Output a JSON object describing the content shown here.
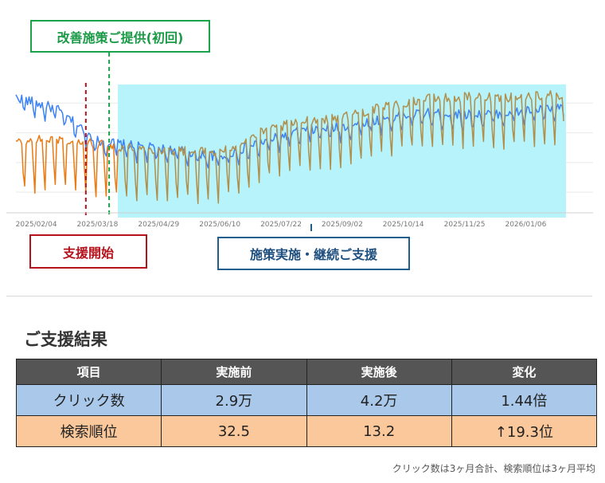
{
  "annotations": {
    "improve_label": "改善施策ご提供(初回)",
    "start_label": "支援開始",
    "impl_label": "施策実施・継続ご支援",
    "improve_color": "#1aa34a",
    "start_color": "#b5121b",
    "impl_color": "#1f5f8f",
    "highlight_color": "#b6f3fa"
  },
  "chart_data": {
    "type": "line",
    "title": "",
    "xlabel": "",
    "ylabel": "",
    "x_tick_labels": [
      "2025/02/04",
      "2025/03/18",
      "2025/04/29",
      "2025/06/10",
      "2025/07/22",
      "2025/09/02",
      "2025/10/14",
      "2025/11/25",
      "2026/01/06"
    ],
    "x_range": [
      "2025/01/21",
      "2026/02/01"
    ],
    "y_axis_labels_visible": false,
    "gridlines": "horizontal",
    "events": [
      {
        "date": "2025/03/10",
        "label": "支援開始",
        "style": "dashed",
        "color": "#b5121b"
      },
      {
        "date": "2025/03/26",
        "label": "改善施策ご提供(初回)",
        "style": "dashed",
        "color": "#1aa34a"
      }
    ],
    "highlight_range": {
      "start": "2025/04/01",
      "end": "2026/02/01",
      "label": "施策実施・継続ご支援"
    },
    "series": [
      {
        "color": "#3b82f6",
        "x": [
          "2025/01/21",
          "2025/02/18",
          "2025/03/18",
          "2025/04/15",
          "2025/05/13",
          "2025/06/10",
          "2025/07/08",
          "2025/08/05",
          "2025/09/02",
          "2025/09/30",
          "2025/10/28",
          "2025/11/25",
          "2025/12/23",
          "2026/01/20"
        ],
        "y": [
          58,
          52,
          36,
          33,
          31,
          28,
          35,
          41,
          43,
          47,
          50,
          49,
          50,
          52
        ],
        "weekly_dip": 6
      },
      {
        "color": "#ea7a14",
        "color_after_highlight": "#b08e4b",
        "x": [
          "2025/01/21",
          "2025/02/18",
          "2025/03/18",
          "2025/04/15",
          "2025/05/13",
          "2025/06/10",
          "2025/07/08",
          "2025/08/05",
          "2025/09/02",
          "2025/09/30",
          "2025/10/28",
          "2025/11/25",
          "2025/12/23",
          "2026/01/20"
        ],
        "y": [
          35,
          37,
          34,
          32,
          31,
          30,
          40,
          46,
          48,
          53,
          57,
          58,
          58,
          59
        ],
        "weekly_dip": 24
      }
    ]
  },
  "results": {
    "title": "ご支援結果",
    "headers": [
      "項目",
      "実施前",
      "実施後",
      "変化"
    ],
    "rows": [
      [
        "クリック数",
        "2.9万",
        "4.2万",
        "1.44倍"
      ],
      [
        "検索順位",
        "32.5",
        "13.2",
        "↑19.3位"
      ]
    ],
    "footnote": "クリック数は3ヶ月合計、検索順位は3ヶ月平均"
  }
}
